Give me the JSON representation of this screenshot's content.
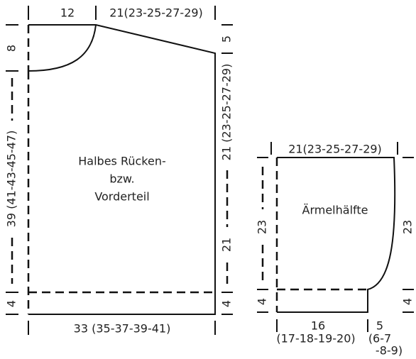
{
  "body_piece": {
    "label": [
      "Halbes Rücken-",
      "bzw.",
      "Vorderteil"
    ],
    "dims": {
      "top_left": "12",
      "top_right": "21(23-25-27-29)",
      "left_top": "8",
      "left_middle": "39 (41-43-45-47)",
      "left_bottom": "4",
      "right_top": "5",
      "right_upper": "21 (23-25-27-29)",
      "right_lower": "21",
      "right_bottom": "4",
      "bottom": "33 (35-37-39-41)"
    }
  },
  "sleeve_piece": {
    "label": "Ärmelhälfte",
    "dims": {
      "top": "21(23-25-27-29)",
      "left_upper": "23",
      "left_bottom": "4",
      "right_upper": "23",
      "right_bottom": "4",
      "bottom_left": [
        "16",
        "(17-18-19-20)"
      ],
      "bottom_right": [
        "5",
        "(6-7",
        "-8-9)"
      ]
    }
  }
}
